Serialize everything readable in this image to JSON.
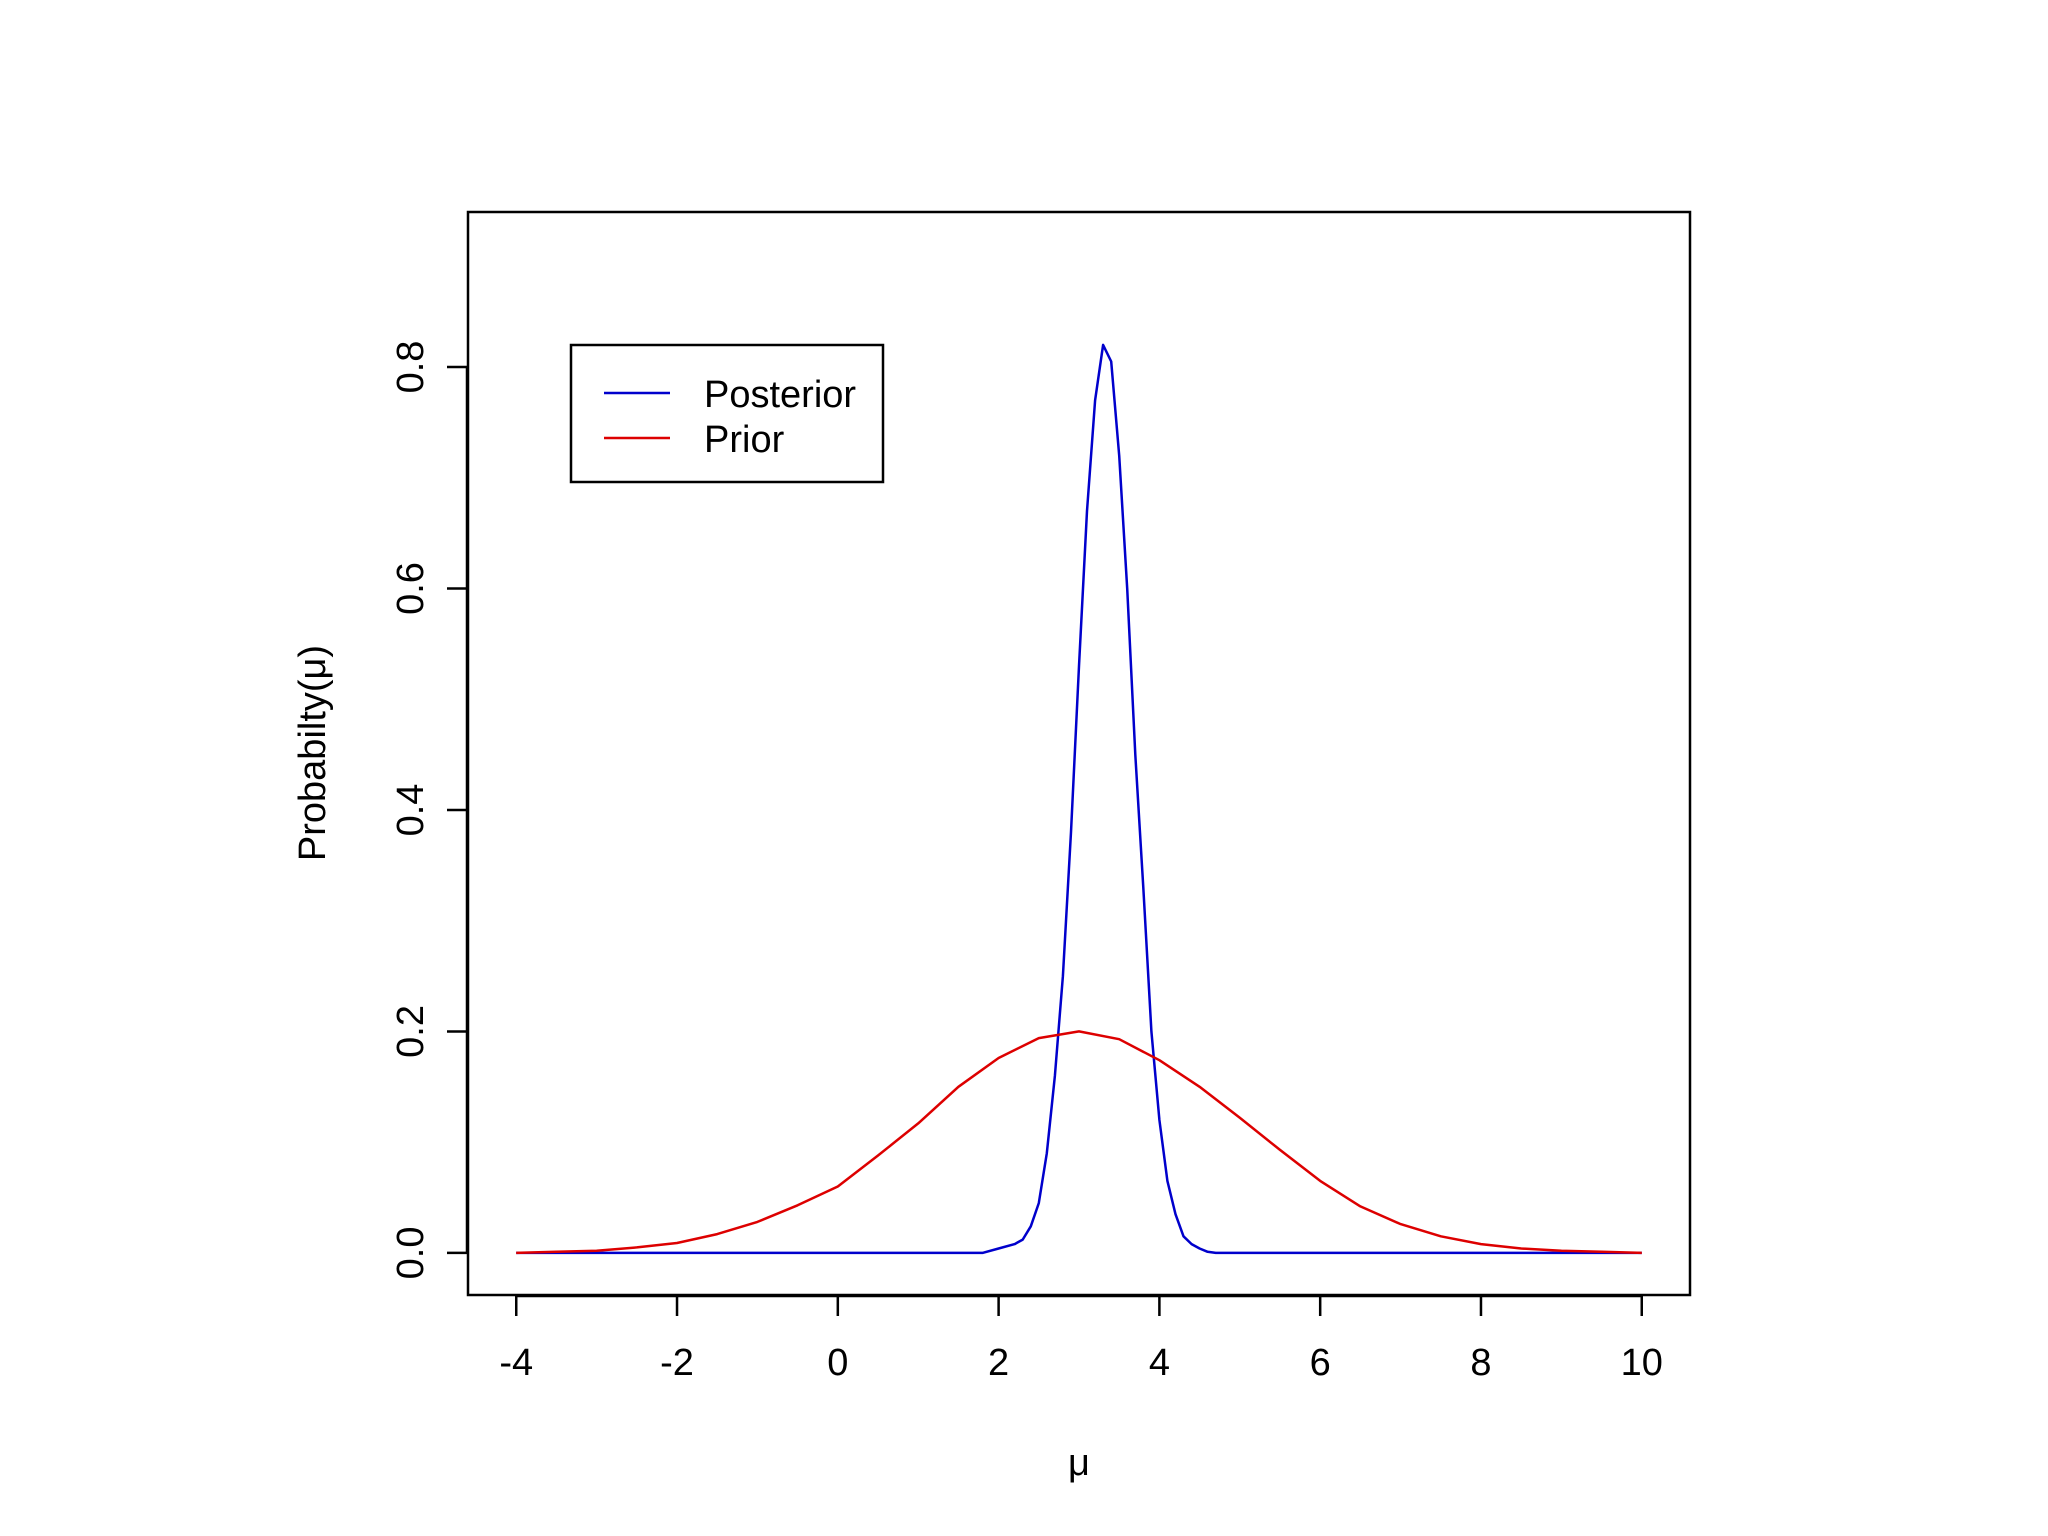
{
  "chart_data": {
    "type": "line",
    "title": "",
    "xlabel": "μ",
    "ylabel": "Probabilty(μ)",
    "xlim": [
      -4.6,
      10.6
    ],
    "ylim": [
      -0.038,
      0.94
    ],
    "xticks": [
      -4,
      -2,
      0,
      2,
      4,
      6,
      8,
      10
    ],
    "xtick_labels": [
      "-4",
      "-2",
      "0",
      "2",
      "4",
      "6",
      "8",
      "10"
    ],
    "yticks": [
      0.0,
      0.2,
      0.4,
      0.6,
      0.8
    ],
    "ytick_labels": [
      "0.0",
      "0.2",
      "0.4",
      "0.6",
      "0.8"
    ],
    "grid": false,
    "legend": "top-left",
    "series": [
      {
        "name": "Posterior",
        "color": "#0000cc",
        "x": [
          -4,
          -3,
          -2,
          -1,
          0,
          1,
          1.8,
          2.0,
          2.2,
          2.3,
          2.4,
          2.5,
          2.6,
          2.7,
          2.8,
          2.9,
          3.0,
          3.1,
          3.2,
          3.3,
          3.4,
          3.5,
          3.6,
          3.7,
          3.8,
          3.9,
          4.0,
          4.1,
          4.2,
          4.3,
          4.4,
          4.5,
          4.6,
          4.7,
          4.8,
          4.9,
          5.0,
          5.1,
          5.2,
          5.3,
          5.4,
          5.5,
          6,
          7,
          8,
          9,
          10
        ],
        "y": [
          0,
          0,
          0,
          0,
          0,
          0,
          0,
          0.004,
          0.008,
          0.012,
          0.024,
          0.045,
          0.09,
          0.16,
          0.25,
          0.38,
          0.53,
          0.67,
          0.77,
          0.82,
          0.805,
          0.72,
          0.6,
          0.45,
          0.33,
          0.2,
          0.12,
          0.065,
          0.035,
          0.015,
          0.008,
          0.004,
          0.001,
          0,
          0,
          0,
          0,
          0,
          0,
          0,
          0,
          0,
          0,
          0,
          0,
          0,
          0
        ]
      },
      {
        "name": "Prior",
        "color": "#dd0000",
        "x": [
          -4,
          -3.5,
          -3,
          -2.5,
          -2,
          -1.5,
          -1,
          -0.5,
          0,
          0.5,
          1,
          1.5,
          2,
          2.5,
          3,
          3.5,
          4,
          4.5,
          5,
          5.5,
          6,
          6.5,
          7,
          7.5,
          8,
          8.5,
          9,
          9.5,
          10
        ],
        "y": [
          0,
          0.001,
          0.002,
          0.005,
          0.009,
          0.017,
          0.028,
          0.043,
          0.06,
          0.088,
          0.117,
          0.15,
          0.176,
          0.194,
          0.2,
          0.193,
          0.174,
          0.15,
          0.122,
          0.093,
          0.065,
          0.042,
          0.026,
          0.015,
          0.008,
          0.004,
          0.002,
          0.001,
          0
        ]
      }
    ]
  }
}
